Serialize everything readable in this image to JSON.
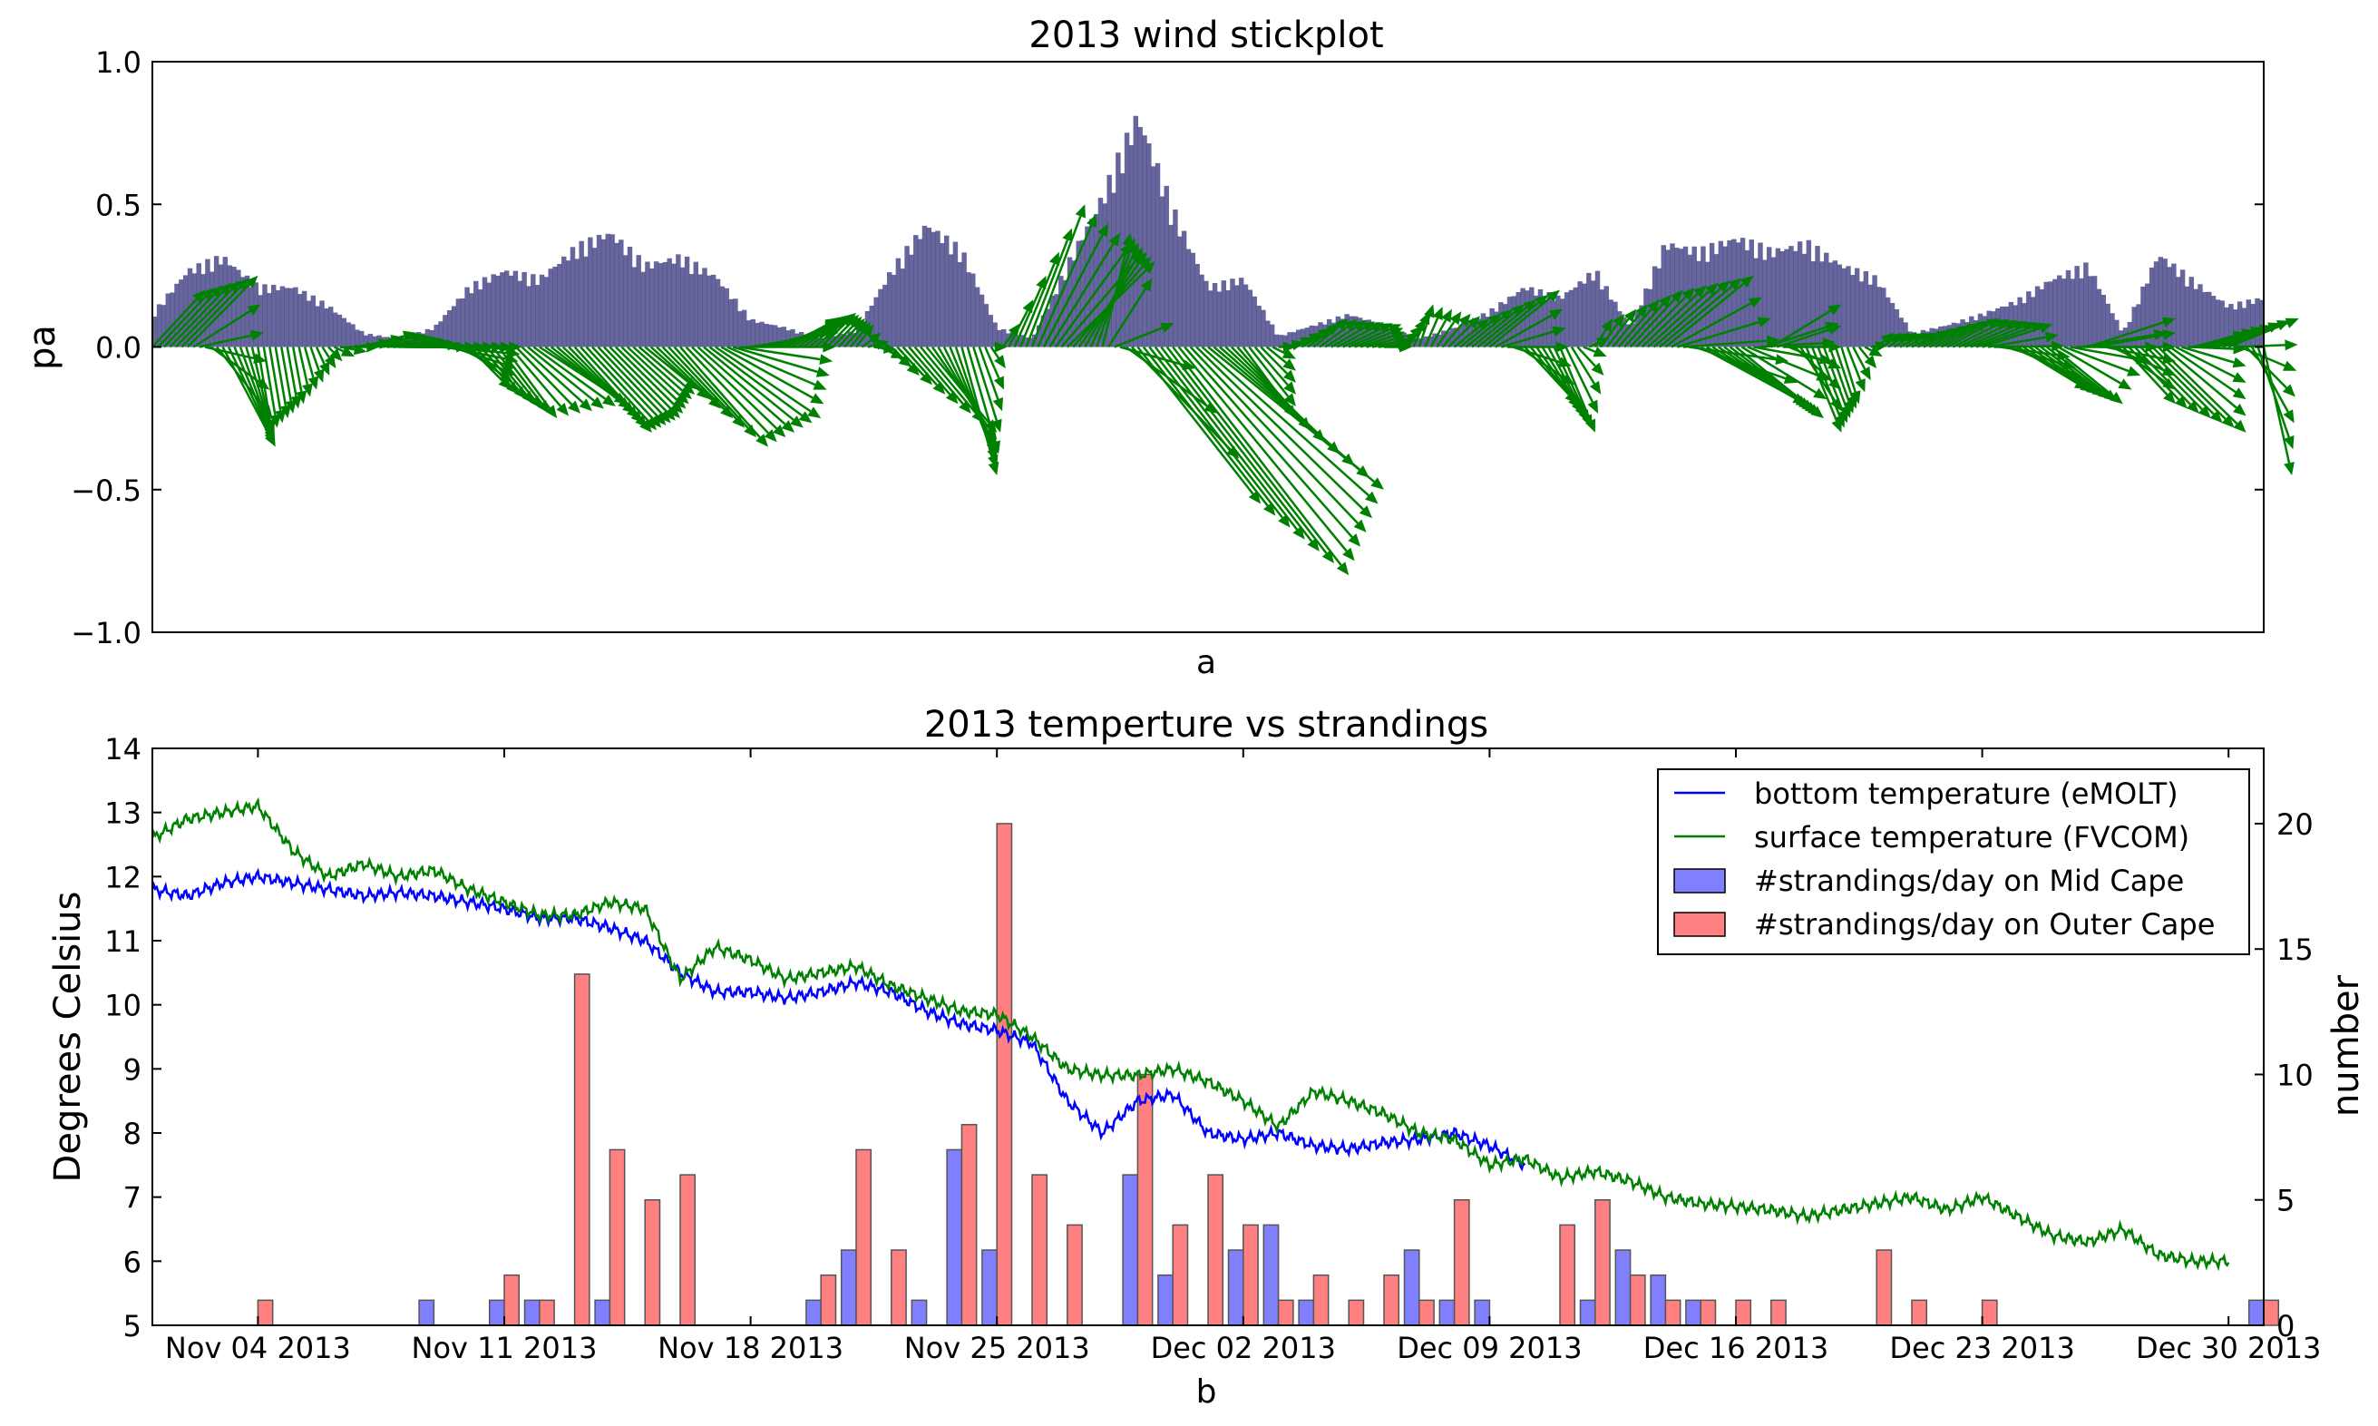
{
  "chart_data": [
    {
      "type": "quiver",
      "title": "2013 wind stickplot",
      "xlabel": "a",
      "ylabel": "pa",
      "xlim": [
        "2013-11-01",
        "2013-12-31"
      ],
      "ylim": [
        -1.0,
        1.0
      ],
      "yticks": [
        1.0,
        0.5,
        0.0,
        -0.5,
        -1.0
      ],
      "ytick_labels": [
        "1.0",
        "0.5",
        "0.0",
        "−0.5",
        "−1.0"
      ],
      "colors": {
        "arrows": "#008000",
        "bars": "#4b4b8c"
      },
      "stress_envelope": {
        "dates": [
          "2013-11-01",
          "2013-11-02",
          "2013-11-03",
          "2013-11-04",
          "2013-11-05",
          "2013-11-06",
          "2013-11-07",
          "2013-11-08",
          "2013-11-09",
          "2013-11-10",
          "2013-11-11",
          "2013-11-12",
          "2013-11-13",
          "2013-11-14",
          "2013-11-15",
          "2013-11-16",
          "2013-11-17",
          "2013-11-18",
          "2013-11-19",
          "2013-11-20",
          "2013-11-21",
          "2013-11-22",
          "2013-11-23",
          "2013-11-24",
          "2013-11-25",
          "2013-11-26",
          "2013-11-27",
          "2013-11-28",
          "2013-11-29",
          "2013-11-30",
          "2013-12-01",
          "2013-12-02",
          "2013-12-03",
          "2013-12-04",
          "2013-12-05",
          "2013-12-06",
          "2013-12-07",
          "2013-12-08",
          "2013-12-09",
          "2013-12-10",
          "2013-12-11",
          "2013-12-12",
          "2013-12-13",
          "2013-12-14",
          "2013-12-15",
          "2013-12-16",
          "2013-12-17",
          "2013-12-18",
          "2013-12-19",
          "2013-12-20",
          "2013-12-21",
          "2013-12-22",
          "2013-12-23",
          "2013-12-24",
          "2013-12-25",
          "2013-12-26",
          "2013-12-27",
          "2013-12-28",
          "2013-12-29",
          "2013-12-30",
          "2013-12-31"
        ],
        "values": [
          0.12,
          0.28,
          0.33,
          0.22,
          0.22,
          0.15,
          0.05,
          0.03,
          0.07,
          0.22,
          0.28,
          0.25,
          0.36,
          0.42,
          0.3,
          0.33,
          0.26,
          0.1,
          0.07,
          0.03,
          0.06,
          0.28,
          0.45,
          0.35,
          0.07,
          0.03,
          0.3,
          0.55,
          0.85,
          0.5,
          0.22,
          0.25,
          0.04,
          0.08,
          0.12,
          0.08,
          0.03,
          0.07,
          0.13,
          0.22,
          0.18,
          0.28,
          0.07,
          0.38,
          0.35,
          0.4,
          0.35,
          0.38,
          0.3,
          0.25,
          0.05,
          0.08,
          0.12,
          0.17,
          0.25,
          0.3,
          0.05,
          0.34,
          0.24,
          0.15,
          0.18
        ]
      },
      "vectors": {
        "dates": [
          "2013-11-01",
          "2013-11-02",
          "2013-11-03",
          "2013-11-04",
          "2013-11-05",
          "2013-11-06",
          "2013-11-07",
          "2013-11-08",
          "2013-11-09",
          "2013-11-10",
          "2013-11-11",
          "2013-11-12",
          "2013-11-13",
          "2013-11-14",
          "2013-11-15",
          "2013-11-16",
          "2013-11-17",
          "2013-11-18",
          "2013-11-19",
          "2013-11-20",
          "2013-11-21",
          "2013-11-22",
          "2013-11-23",
          "2013-11-24",
          "2013-11-25",
          "2013-11-26",
          "2013-11-27",
          "2013-11-28",
          "2013-11-29",
          "2013-11-30",
          "2013-12-01",
          "2013-12-02",
          "2013-12-03",
          "2013-12-04",
          "2013-12-05",
          "2013-12-06",
          "2013-12-07",
          "2013-12-08",
          "2013-12-09",
          "2013-12-10",
          "2013-12-11",
          "2013-12-12",
          "2013-12-13",
          "2013-12-14",
          "2013-12-15",
          "2013-12-16",
          "2013-12-17",
          "2013-12-18",
          "2013-12-19",
          "2013-12-20",
          "2013-12-21",
          "2013-12-22",
          "2013-12-23",
          "2013-12-24",
          "2013-12-25",
          "2013-12-26",
          "2013-12-27",
          "2013-12-28",
          "2013-12-29",
          "2013-12-30",
          "2013-12-31"
        ],
        "u": [
          1.5,
          2.0,
          1.5,
          0.4,
          0.3,
          0.4,
          1.5,
          2.0,
          2.5,
          1.2,
          1.5,
          2.5,
          2.2,
          2.0,
          1.5,
          2.5,
          3.0,
          2.5,
          1.5,
          1.0,
          0.5,
          0.8,
          2.0,
          1.0,
          0.3,
          1.5,
          2.5,
          0.8,
          3.5,
          5.0,
          5.0,
          1.5,
          0.5,
          1.0,
          1.5,
          0.8,
          0.4,
          1.0,
          2.0,
          1.5,
          1.0,
          0.5,
          1.5,
          2.5,
          3.0,
          2.5,
          2.0,
          1.0,
          0.5,
          0.5,
          0.8,
          1.5,
          2.0,
          2.0,
          2.0,
          2.5,
          1.5,
          2.5,
          1.5,
          2.0,
          0.8
        ],
        "v": [
          0.2,
          0.25,
          -0.35,
          -0.3,
          -0.2,
          -0.05,
          0.05,
          0.0,
          0.0,
          -0.15,
          -0.25,
          -0.2,
          -0.3,
          -0.25,
          -0.15,
          -0.35,
          -0.25,
          0.05,
          0.1,
          0.12,
          0.08,
          -0.1,
          -0.3,
          -0.45,
          0.0,
          0.5,
          0.3,
          0.4,
          -0.55,
          -0.8,
          -0.5,
          -0.25,
          0.0,
          0.1,
          0.08,
          0.0,
          0.15,
          0.1,
          0.2,
          -0.2,
          -0.3,
          0.1,
          0.2,
          0.25,
          -0.2,
          -0.25,
          0.15,
          -0.3,
          -0.2,
          0.05,
          0.05,
          0.1,
          0.08,
          -0.15,
          -0.2,
          0.1,
          -0.2,
          -0.3,
          0.05,
          0.1,
          -0.45
        ]
      }
    },
    {
      "type": "bar+line",
      "title": "2013 temperture vs strandings",
      "xlabel": "b",
      "ylabel": "Degrees Celsius",
      "ylabel_right": "number",
      "xlim": [
        "2013-11-01",
        "2013-12-31"
      ],
      "ylim": [
        5,
        14
      ],
      "ylim_right": [
        0,
        23
      ],
      "yticks": [
        5,
        6,
        7,
        8,
        9,
        10,
        11,
        12,
        13,
        14
      ],
      "yticks_right": [
        0,
        5,
        10,
        15,
        20
      ],
      "xticks": [
        {
          "date": "2013-11-04",
          "label": "Nov 04 2013"
        },
        {
          "date": "2013-11-11",
          "label": "Nov 11 2013"
        },
        {
          "date": "2013-11-18",
          "label": "Nov 18 2013"
        },
        {
          "date": "2013-11-25",
          "label": "Nov 25 2013"
        },
        {
          "date": "2013-12-02",
          "label": "Dec 02 2013"
        },
        {
          "date": "2013-12-09",
          "label": "Dec 09 2013"
        },
        {
          "date": "2013-12-16",
          "label": "Dec 16 2013"
        },
        {
          "date": "2013-12-23",
          "label": "Dec 23 2013"
        },
        {
          "date": "2013-12-30",
          "label": "Dec 30 2013"
        }
      ],
      "legend_position": "top-right",
      "series": [
        {
          "name": "bottom temperature (eMOLT)",
          "kind": "line",
          "color": "#0000ff",
          "x": [
            "2013-11-01",
            "2013-11-02",
            "2013-11-03",
            "2013-11-04",
            "2013-11-05",
            "2013-11-06",
            "2013-11-07",
            "2013-11-08",
            "2013-11-09",
            "2013-11-10",
            "2013-11-11",
            "2013-11-12",
            "2013-11-13",
            "2013-11-14",
            "2013-11-15",
            "2013-11-16",
            "2013-11-17",
            "2013-11-18",
            "2013-11-19",
            "2013-11-20",
            "2013-11-21",
            "2013-11-22",
            "2013-11-23",
            "2013-11-24",
            "2013-11-25",
            "2013-11-26",
            "2013-11-27",
            "2013-11-28",
            "2013-11-29",
            "2013-11-30",
            "2013-12-01",
            "2013-12-02",
            "2013-12-03",
            "2013-12-04",
            "2013-12-05",
            "2013-12-06",
            "2013-12-07",
            "2013-12-08",
            "2013-12-09",
            "2013-12-10"
          ],
          "y": [
            11.8,
            11.7,
            11.9,
            12.0,
            11.9,
            11.8,
            11.7,
            11.75,
            11.7,
            11.6,
            11.5,
            11.35,
            11.35,
            11.2,
            11.0,
            10.5,
            10.2,
            10.2,
            10.1,
            10.2,
            10.35,
            10.2,
            9.9,
            9.7,
            9.6,
            9.4,
            8.5,
            8.0,
            8.5,
            8.6,
            8.0,
            7.9,
            8.0,
            7.8,
            7.75,
            7.85,
            7.9,
            8.0,
            7.8,
            7.5
          ]
        },
        {
          "name": "surface temperature (FVCOM)",
          "kind": "line",
          "color": "#008000",
          "x": [
            "2013-11-01",
            "2013-11-02",
            "2013-11-03",
            "2013-11-04",
            "2013-11-05",
            "2013-11-06",
            "2013-11-07",
            "2013-11-08",
            "2013-11-09",
            "2013-11-10",
            "2013-11-11",
            "2013-11-12",
            "2013-11-13",
            "2013-11-14",
            "2013-11-15",
            "2013-11-16",
            "2013-11-17",
            "2013-11-18",
            "2013-11-19",
            "2013-11-20",
            "2013-11-21",
            "2013-11-22",
            "2013-11-23",
            "2013-11-24",
            "2013-11-25",
            "2013-11-26",
            "2013-11-27",
            "2013-11-28",
            "2013-11-29",
            "2013-11-30",
            "2013-12-01",
            "2013-12-02",
            "2013-12-03",
            "2013-12-04",
            "2013-12-05",
            "2013-12-06",
            "2013-12-07",
            "2013-12-08",
            "2013-12-09",
            "2013-12-10",
            "2013-12-11",
            "2013-12-12",
            "2013-12-13",
            "2013-12-14",
            "2013-12-15",
            "2013-12-16",
            "2013-12-17",
            "2013-12-18",
            "2013-12-19",
            "2013-12-20",
            "2013-12-21",
            "2013-12-22",
            "2013-12-23",
            "2013-12-24",
            "2013-12-25",
            "2013-12-26",
            "2013-12-27",
            "2013-12-28",
            "2013-12-29",
            "2013-12-30"
          ],
          "y": [
            12.6,
            12.9,
            13.0,
            13.1,
            12.4,
            12.0,
            12.2,
            12.0,
            12.1,
            11.8,
            11.6,
            11.4,
            11.4,
            11.6,
            11.5,
            10.4,
            10.9,
            10.7,
            10.4,
            10.5,
            10.6,
            10.3,
            10.1,
            9.9,
            9.85,
            9.5,
            9.0,
            8.9,
            8.9,
            9.0,
            8.8,
            8.5,
            8.1,
            8.65,
            8.5,
            8.3,
            8.0,
            7.9,
            7.5,
            7.6,
            7.3,
            7.4,
            7.25,
            7.0,
            6.9,
            6.85,
            6.8,
            6.7,
            6.8,
            6.9,
            7.0,
            6.8,
            7.0,
            6.7,
            6.4,
            6.3,
            6.5,
            6.1,
            6.0,
            6.0
          ]
        },
        {
          "name": "#strandings/day on Mid Cape",
          "kind": "bar",
          "color": "#8080ff",
          "x": [
            "2013-11-09",
            "2013-11-11",
            "2013-11-12",
            "2013-11-14",
            "2013-11-20",
            "2013-11-21",
            "2013-11-23",
            "2013-11-24",
            "2013-11-25",
            "2013-11-29",
            "2013-11-30",
            "2013-12-02",
            "2013-12-03",
            "2013-12-04",
            "2013-12-07",
            "2013-12-08",
            "2013-12-09",
            "2013-12-12",
            "2013-12-13",
            "2013-12-14",
            "2013-12-15",
            "2013-12-31"
          ],
          "y": [
            1,
            1,
            1,
            1,
            1,
            3,
            1,
            7,
            3,
            6,
            2,
            3,
            4,
            1,
            3,
            1,
            1,
            1,
            3,
            2,
            1,
            1
          ]
        },
        {
          "name": "#strandings/day on Outer Cape",
          "kind": "bar",
          "color": "#ff8080",
          "x": [
            "2013-11-04",
            "2013-11-11",
            "2013-11-12",
            "2013-11-13",
            "2013-11-14",
            "2013-11-15",
            "2013-11-16",
            "2013-11-20",
            "2013-11-21",
            "2013-11-22",
            "2013-11-24",
            "2013-11-25",
            "2013-11-26",
            "2013-11-27",
            "2013-11-29",
            "2013-11-30",
            "2013-12-01",
            "2013-12-02",
            "2013-12-03",
            "2013-12-04",
            "2013-12-05",
            "2013-12-06",
            "2013-12-07",
            "2013-12-08",
            "2013-12-11",
            "2013-12-12",
            "2013-12-13",
            "2013-12-14",
            "2013-12-15",
            "2013-12-16",
            "2013-12-17",
            "2013-12-20",
            "2013-12-21",
            "2013-12-23",
            "2013-12-31"
          ],
          "y": [
            1,
            2,
            1,
            14,
            7,
            5,
            6,
            2,
            7,
            3,
            8,
            20,
            6,
            4,
            10,
            4,
            6,
            4,
            1,
            2,
            1,
            2,
            1,
            5,
            4,
            5,
            2,
            1,
            1,
            1,
            1,
            3,
            1,
            1,
            1
          ]
        }
      ]
    }
  ]
}
